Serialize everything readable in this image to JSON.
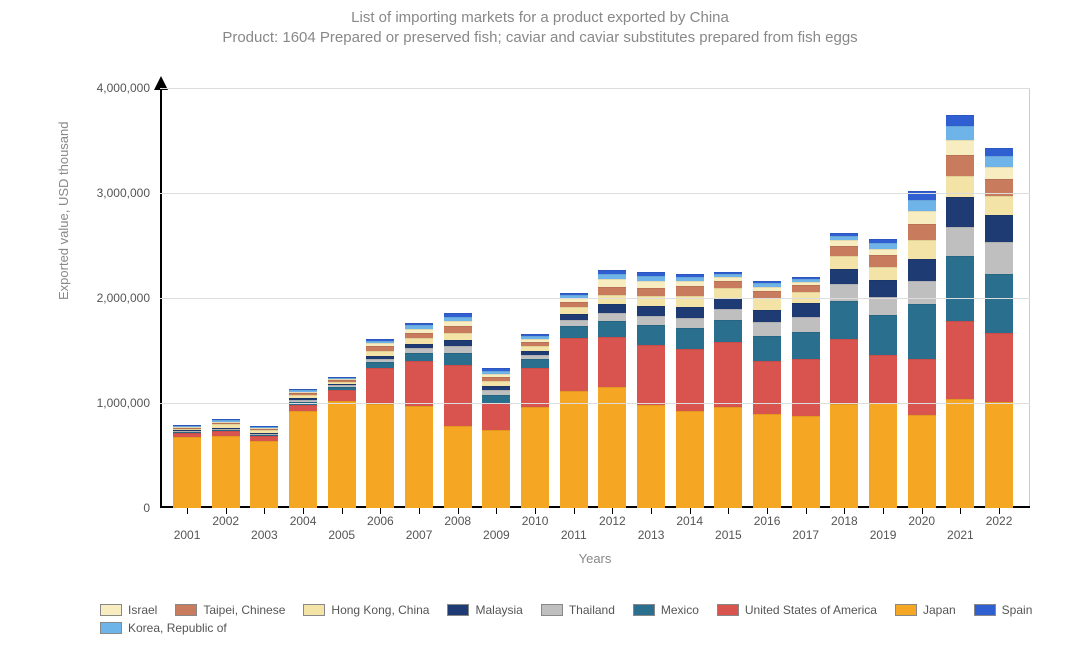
{
  "chart": {
    "type": "stacked-bar",
    "title_line1": "List of importing markets for a product exported by China",
    "title_line2": "Product: 1604 Prepared or preserved fish; caviar and caviar substitutes prepared from fish eggs",
    "title_color": "#888888",
    "title_fontsize": 15,
    "background_color": "#ffffff",
    "grid_color": "#dddddd",
    "axis_color": "#000000",
    "border_color": "#cccccc",
    "x_axis_title": "Years",
    "y_axis_title": "Exported value, USD thousand",
    "axis_title_color": "#888888",
    "axis_title_fontsize": 13,
    "tick_label_color": "#555555",
    "tick_label_fontsize": 12,
    "ylim": [
      0,
      4000000
    ],
    "yticks": [
      0,
      1000000,
      2000000,
      3000000,
      4000000
    ],
    "ytick_labels": [
      "0",
      "1,000,000",
      "2,000,000",
      "3,000,000",
      "4,000,000"
    ],
    "categories": [
      "2001",
      "2002",
      "2003",
      "2004",
      "2005",
      "2006",
      "2007",
      "2008",
      "2009",
      "2010",
      "2011",
      "2012",
      "2013",
      "2014",
      "2015",
      "2016",
      "2017",
      "2018",
      "2019",
      "2020",
      "2021",
      "2022"
    ],
    "bar_width_ratio": 0.72,
    "series": [
      {
        "key": "japan",
        "label": "Japan",
        "color": "#f5a623"
      },
      {
        "key": "usa",
        "label": "United States of America",
        "color": "#d9534f"
      },
      {
        "key": "mexico",
        "label": "Mexico",
        "color": "#2b6f8e"
      },
      {
        "key": "thailand",
        "label": "Thailand",
        "color": "#bfbfbf"
      },
      {
        "key": "malaysia",
        "label": "Malaysia",
        "color": "#1f3b73"
      },
      {
        "key": "hk",
        "label": "Hong Kong, China",
        "color": "#f3e3a7"
      },
      {
        "key": "taipei",
        "label": "Taipei, Chinese",
        "color": "#c97b5d"
      },
      {
        "key": "israel",
        "label": "Israel",
        "color": "#f8edc0"
      },
      {
        "key": "korea",
        "label": "Korea, Republic of",
        "color": "#6fb4e8"
      },
      {
        "key": "spain",
        "label": "Spain",
        "color": "#2f5fd0"
      }
    ],
    "legend_order": [
      "israel",
      "taipei",
      "hk",
      "malaysia",
      "thailand",
      "mexico",
      "usa",
      "japan",
      "spain",
      "korea"
    ],
    "data": {
      "japan": [
        700000,
        700000,
        650000,
        920000,
        1020000,
        990000,
        970000,
        780000,
        740000,
        960000,
        1110000,
        1150000,
        980000,
        920000,
        960000,
        900000,
        880000,
        990000,
        1000000,
        890000,
        1040000,
        1010000
      ],
      "usa": [
        40000,
        45000,
        50000,
        60000,
        100000,
        340000,
        430000,
        580000,
        260000,
        370000,
        510000,
        480000,
        570000,
        590000,
        620000,
        500000,
        540000,
        620000,
        460000,
        530000,
        740000,
        660000
      ],
      "mexico": [
        10000,
        12000,
        14000,
        30000,
        30000,
        60000,
        80000,
        120000,
        80000,
        90000,
        110000,
        150000,
        190000,
        200000,
        210000,
        240000,
        260000,
        360000,
        380000,
        520000,
        620000,
        560000
      ],
      "thailand": [
        8000,
        9000,
        10000,
        20000,
        20000,
        30000,
        40000,
        60000,
        40000,
        40000,
        60000,
        80000,
        90000,
        100000,
        110000,
        130000,
        140000,
        160000,
        170000,
        220000,
        280000,
        300000
      ],
      "malaysia": [
        7000,
        8000,
        9000,
        15000,
        15000,
        30000,
        40000,
        60000,
        40000,
        40000,
        60000,
        80000,
        90000,
        100000,
        100000,
        120000,
        130000,
        150000,
        160000,
        210000,
        280000,
        260000
      ],
      "hk": [
        6000,
        40000,
        20000,
        30000,
        20000,
        50000,
        60000,
        70000,
        50000,
        40000,
        60000,
        90000,
        100000,
        110000,
        100000,
        110000,
        110000,
        120000,
        130000,
        180000,
        200000,
        180000
      ],
      "taipei": [
        5000,
        6000,
        7000,
        20000,
        15000,
        40000,
        50000,
        60000,
        40000,
        40000,
        50000,
        80000,
        80000,
        90000,
        60000,
        70000,
        60000,
        100000,
        110000,
        160000,
        200000,
        160000
      ],
      "israel": [
        4000,
        5000,
        6000,
        15000,
        10000,
        30000,
        40000,
        50000,
        30000,
        30000,
        40000,
        70000,
        60000,
        50000,
        40000,
        40000,
        30000,
        50000,
        60000,
        120000,
        150000,
        120000
      ],
      "korea": [
        4000,
        15000,
        6000,
        15000,
        10000,
        25000,
        30000,
        40000,
        30000,
        30000,
        30000,
        50000,
        50000,
        40000,
        30000,
        30000,
        30000,
        40000,
        50000,
        100000,
        130000,
        100000
      ],
      "spain": [
        3000,
        4000,
        5000,
        10000,
        10000,
        20000,
        25000,
        35000,
        25000,
        20000,
        20000,
        40000,
        40000,
        30000,
        20000,
        20000,
        20000,
        30000,
        40000,
        90000,
        100000,
        80000
      ]
    }
  }
}
